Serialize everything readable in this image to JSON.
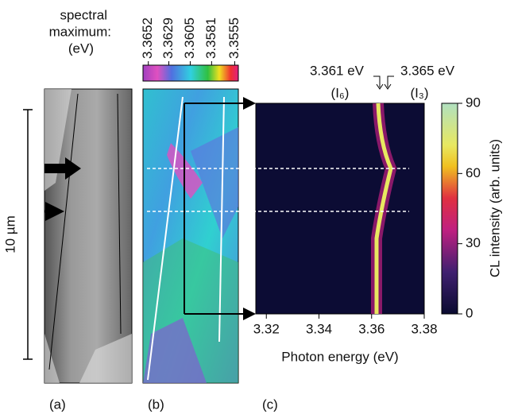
{
  "panels": {
    "a": "(a)",
    "b": "(b)",
    "c": "(c)"
  },
  "scale_bar": "10 µm",
  "spectral_colorbar": {
    "title": [
      "spectral",
      "maximum:",
      "(eV)"
    ],
    "xlim": [
      3.3658,
      3.3551
    ],
    "xticks": [
      3.3652,
      3.3629,
      3.3605,
      3.3581,
      3.3555
    ]
  },
  "chart_data": {
    "type": "heatmap",
    "xlabel": "Photon energy (eV)",
    "xlim": [
      3.316,
      3.38
    ],
    "xticks": [
      {
        "value": 3.32,
        "label": "3.32"
      },
      3.34,
      3.36,
      {
        "value": 3.38,
        "label": "3.38"
      }
    ],
    "colorbar_label": "CL intensity (arb. units)",
    "clim": [
      0,
      90
    ],
    "cticks": [
      0,
      30,
      60,
      90
    ],
    "annotations": [
      {
        "text": "3.361 eV",
        "sub": "(I₆)"
      },
      {
        "text": "3.365 eV",
        "sub": "(I₃)"
      }
    ]
  }
}
